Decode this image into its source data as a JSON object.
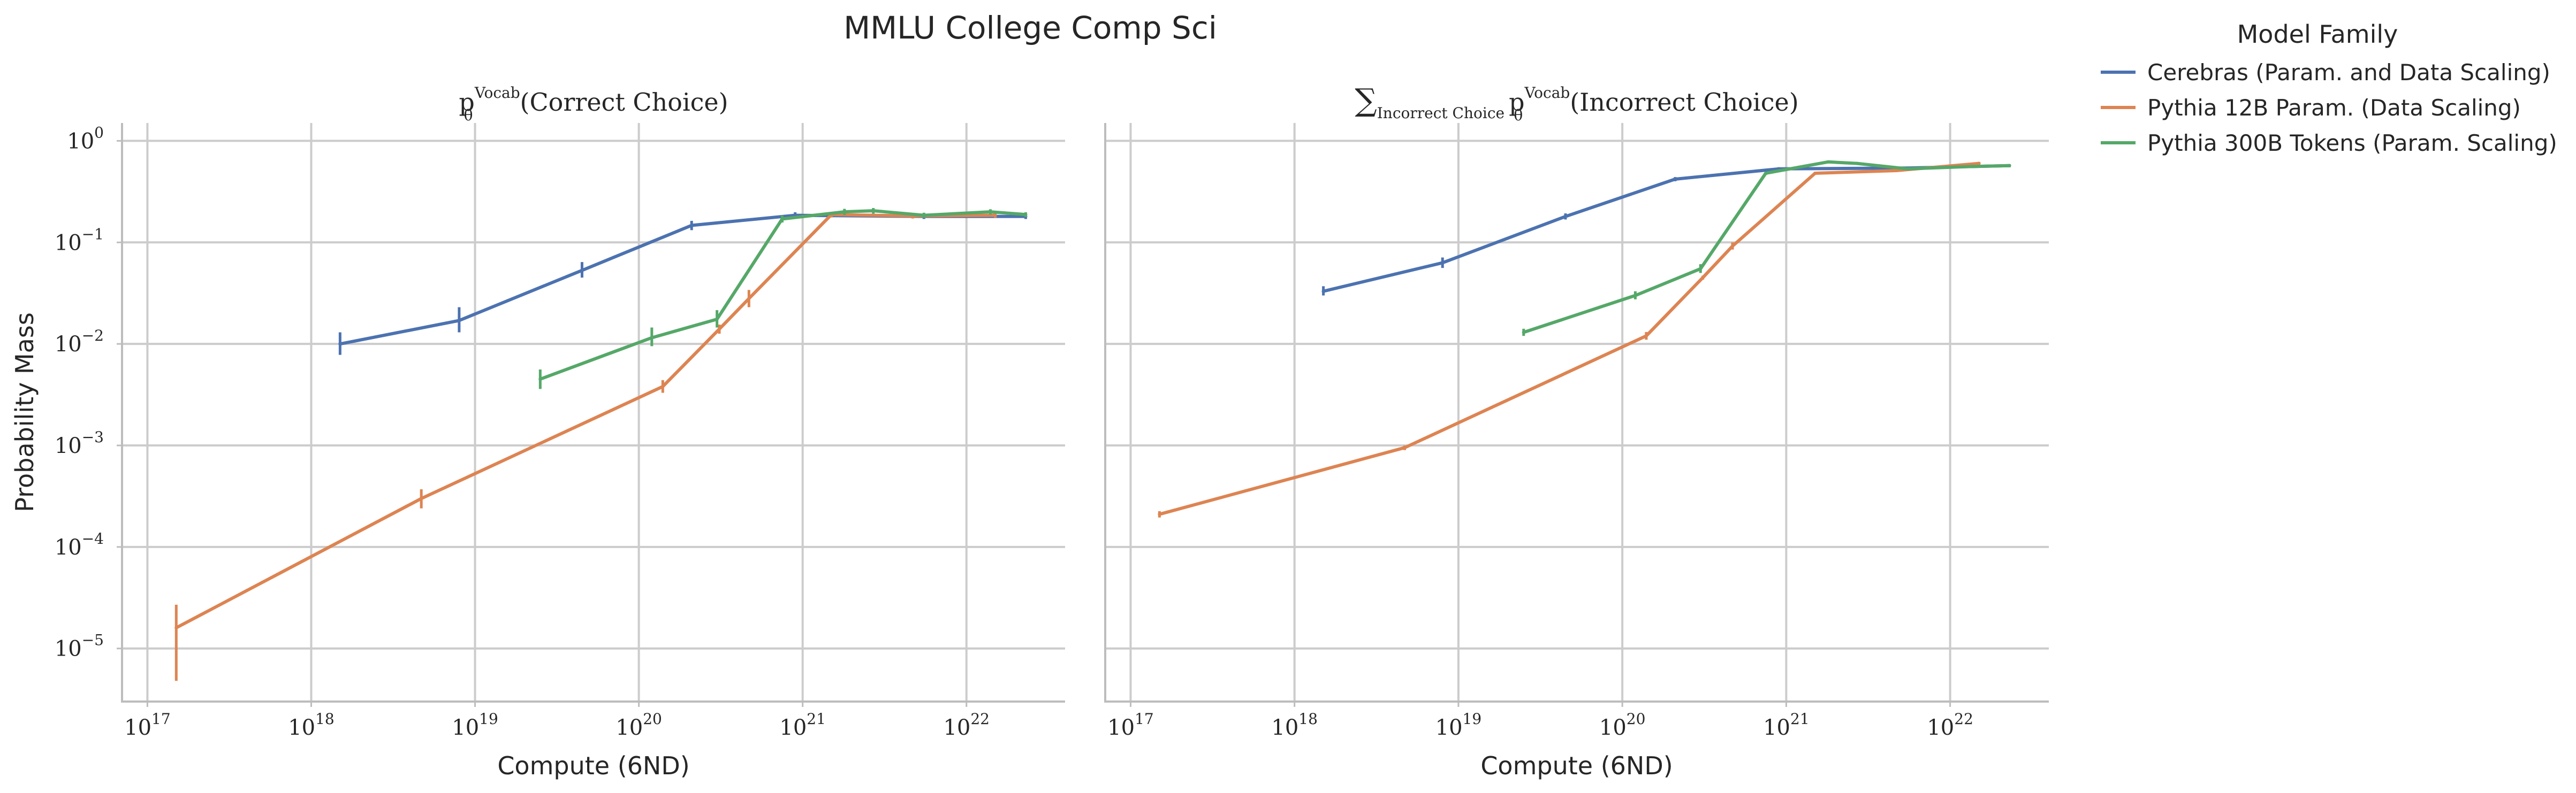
{
  "figure": {
    "suptitle": "MMLU College Comp Sci",
    "legend": {
      "title": "Model Family",
      "entries": [
        {
          "label": "Cerebras (Param. and Data Scaling)",
          "color": "#4c72b0"
        },
        {
          "label": "Pythia 12B Param. (Data Scaling)",
          "color": "#dd8452"
        },
        {
          "label": "Pythia 300B Tokens (Param. Scaling)",
          "color": "#55a868"
        }
      ]
    }
  },
  "chart_data": [
    {
      "type": "line",
      "title": "p_θ^Vocab(Correct Choice)",
      "title_parts": {
        "p": "p",
        "theta": "θ",
        "vocab": "Vocab",
        "arg": "(Correct Choice)"
      },
      "xlabel": "Compute (6ND)",
      "ylabel": "Probability Mass",
      "xscale": "log",
      "yscale": "log",
      "xlim": [
        7e+16,
        4e+22
      ],
      "ylim": [
        3e-06,
        1.5
      ],
      "grid": true,
      "xticks": [
        {
          "value": 1e+17,
          "base": "10",
          "exp": "17"
        },
        {
          "value": 1e+18,
          "base": "10",
          "exp": "18"
        },
        {
          "value": 1e+19,
          "base": "10",
          "exp": "19"
        },
        {
          "value": 1e+20,
          "base": "10",
          "exp": "20"
        },
        {
          "value": 1e+21,
          "base": "10",
          "exp": "21"
        },
        {
          "value": 1e+22,
          "base": "10",
          "exp": "22"
        }
      ],
      "yticks": [
        {
          "value": 1e-05,
          "base": "10",
          "exp": "−5"
        },
        {
          "value": 0.0001,
          "base": "10",
          "exp": "−4"
        },
        {
          "value": 0.001,
          "base": "10",
          "exp": "−3"
        },
        {
          "value": 0.01,
          "base": "10",
          "exp": "−2"
        },
        {
          "value": 0.1,
          "base": "10",
          "exp": "−1"
        },
        {
          "value": 1,
          "base": "10",
          "exp": "0"
        }
      ],
      "series": [
        {
          "name": "Cerebras (Param. and Data Scaling)",
          "color": "#4c72b0",
          "points": [
            {
              "x": 1.5e+18,
              "y": 0.01,
              "lo": 0.0078,
              "hi": 0.013
            },
            {
              "x": 8e+18,
              "y": 0.017,
              "lo": 0.013,
              "hi": 0.023
            },
            {
              "x": 4.5e+19,
              "y": 0.053,
              "lo": 0.045,
              "hi": 0.064
            },
            {
              "x": 2.1e+20,
              "y": 0.147,
              "lo": 0.132,
              "hi": 0.163
            },
            {
              "x": 9e+20,
              "y": 0.185,
              "lo": 0.172,
              "hi": 0.198
            },
            {
              "x": 5.5e+21,
              "y": 0.18,
              "lo": 0.17,
              "hi": 0.19
            },
            {
              "x": 2.3e+22,
              "y": 0.18,
              "lo": 0.17,
              "hi": 0.19
            }
          ]
        },
        {
          "name": "Pythia 12B Param. (Data Scaling)",
          "color": "#dd8452",
          "points": [
            {
              "x": 1.5e+17,
              "y": 1.6e-05,
              "lo": 4.8e-06,
              "hi": 2.7e-05
            },
            {
              "x": 4.7e+18,
              "y": 0.0003,
              "lo": 0.00024,
              "hi": 0.00037
            },
            {
              "x": 1.4e+20,
              "y": 0.0038,
              "lo": 0.0033,
              "hi": 0.0044
            },
            {
              "x": 3.1e+20,
              "y": 0.014,
              "lo": 0.0126,
              "hi": 0.0155
            },
            {
              "x": 4.7e+20,
              "y": 0.028,
              "lo": 0.023,
              "hi": 0.034
            },
            {
              "x": 1.5e+21,
              "y": 0.188,
              "lo": 0.176,
              "hi": 0.2
            },
            {
              "x": 4.7e+21,
              "y": 0.182,
              "lo": 0.172,
              "hi": 0.192
            },
            {
              "x": 1.5e+22,
              "y": 0.185,
              "lo": 0.175,
              "hi": 0.195
            }
          ]
        },
        {
          "name": "Pythia 300B Tokens (Param. Scaling)",
          "color": "#55a868",
          "points": [
            {
              "x": 2.5e+19,
              "y": 0.0045,
              "lo": 0.0036,
              "hi": 0.0056
            },
            {
              "x": 1.2e+20,
              "y": 0.0115,
              "lo": 0.0095,
              "hi": 0.0145
            },
            {
              "x": 3e+20,
              "y": 0.0175,
              "lo": 0.0145,
              "hi": 0.0215
            },
            {
              "x": 7.5e+20,
              "y": 0.17,
              "lo": 0.157,
              "hi": 0.184
            },
            {
              "x": 1.8e+21,
              "y": 0.2,
              "lo": 0.186,
              "hi": 0.214
            },
            {
              "x": 2.7e+21,
              "y": 0.205,
              "lo": 0.192,
              "hi": 0.218
            },
            {
              "x": 5.5e+21,
              "y": 0.185,
              "lo": 0.174,
              "hi": 0.196
            },
            {
              "x": 1.4e+22,
              "y": 0.2,
              "lo": 0.188,
              "hi": 0.212
            },
            {
              "x": 2.3e+22,
              "y": 0.188,
              "lo": 0.178,
              "hi": 0.198
            }
          ]
        }
      ]
    },
    {
      "type": "line",
      "title": "∑_Incorrect Choice p_θ^Vocab(Incorrect Choice)",
      "title_parts": {
        "sum": "∑",
        "sub": "Incorrect Choice",
        "p": "p",
        "theta": "θ",
        "vocab": "Vocab",
        "arg": "(Incorrect Choice)"
      },
      "xlabel": "Compute (6ND)",
      "ylabel": "",
      "xscale": "log",
      "yscale": "log",
      "xlim": [
        7e+16,
        4e+22
      ],
      "ylim": [
        3e-06,
        1.5
      ],
      "grid": true,
      "xticks": [
        {
          "value": 1e+17,
          "base": "10",
          "exp": "17"
        },
        {
          "value": 1e+18,
          "base": "10",
          "exp": "18"
        },
        {
          "value": 1e+19,
          "base": "10",
          "exp": "19"
        },
        {
          "value": 1e+20,
          "base": "10",
          "exp": "20"
        },
        {
          "value": 1e+21,
          "base": "10",
          "exp": "21"
        },
        {
          "value": 1e+22,
          "base": "10",
          "exp": "22"
        }
      ],
      "yticks": [
        {
          "value": 1e-05
        },
        {
          "value": 0.0001
        },
        {
          "value": 0.001
        },
        {
          "value": 0.01
        },
        {
          "value": 0.1
        },
        {
          "value": 1
        }
      ],
      "series": [
        {
          "name": "Cerebras (Param. and Data Scaling)",
          "color": "#4c72b0",
          "points": [
            {
              "x": 1.5e+18,
              "y": 0.033,
              "lo": 0.03,
              "hi": 0.037
            },
            {
              "x": 8e+18,
              "y": 0.063,
              "lo": 0.056,
              "hi": 0.071
            },
            {
              "x": 4.5e+19,
              "y": 0.18,
              "lo": 0.168,
              "hi": 0.193
            },
            {
              "x": 2.1e+20,
              "y": 0.42,
              "lo": 0.4,
              "hi": 0.44
            },
            {
              "x": 9e+20,
              "y": 0.53,
              "lo": 0.51,
              "hi": 0.55
            },
            {
              "x": 5.5e+21,
              "y": 0.54,
              "lo": 0.522,
              "hi": 0.558
            },
            {
              "x": 2.3e+22,
              "y": 0.57,
              "lo": 0.55,
              "hi": 0.59
            }
          ]
        },
        {
          "name": "Pythia 12B Param. (Data Scaling)",
          "color": "#dd8452",
          "points": [
            {
              "x": 1.5e+17,
              "y": 0.00021,
              "lo": 0.000195,
              "hi": 0.000225
            },
            {
              "x": 4.7e+18,
              "y": 0.00095,
              "lo": 0.0009,
              "hi": 0.001
            },
            {
              "x": 1.4e+20,
              "y": 0.012,
              "lo": 0.011,
              "hi": 0.0131
            },
            {
              "x": 3.1e+20,
              "y": 0.045,
              "lo": 0.043,
              "hi": 0.047
            },
            {
              "x": 4.7e+20,
              "y": 0.092,
              "lo": 0.085,
              "hi": 0.1
            },
            {
              "x": 1.5e+21,
              "y": 0.48,
              "lo": 0.465,
              "hi": 0.495
            },
            {
              "x": 4.7e+21,
              "y": 0.51,
              "lo": 0.495,
              "hi": 0.525
            },
            {
              "x": 1.5e+22,
              "y": 0.6,
              "lo": 0.58,
              "hi": 0.62
            }
          ]
        },
        {
          "name": "Pythia 300B Tokens (Param. Scaling)",
          "color": "#55a868",
          "points": [
            {
              "x": 2.5e+19,
              "y": 0.013,
              "lo": 0.012,
              "hi": 0.0141
            },
            {
              "x": 1.2e+20,
              "y": 0.03,
              "lo": 0.0275,
              "hi": 0.033
            },
            {
              "x": 3e+20,
              "y": 0.055,
              "lo": 0.05,
              "hi": 0.061
            },
            {
              "x": 7.5e+20,
              "y": 0.48,
              "lo": 0.462,
              "hi": 0.498
            },
            {
              "x": 1.8e+21,
              "y": 0.62,
              "lo": 0.6,
              "hi": 0.64
            },
            {
              "x": 2.7e+21,
              "y": 0.6,
              "lo": 0.58,
              "hi": 0.62
            },
            {
              "x": 5.5e+21,
              "y": 0.53,
              "lo": 0.512,
              "hi": 0.548
            },
            {
              "x": 1.4e+22,
              "y": 0.56,
              "lo": 0.542,
              "hi": 0.578
            },
            {
              "x": 2.3e+22,
              "y": 0.57,
              "lo": 0.552,
              "hi": 0.588
            }
          ]
        }
      ]
    }
  ]
}
